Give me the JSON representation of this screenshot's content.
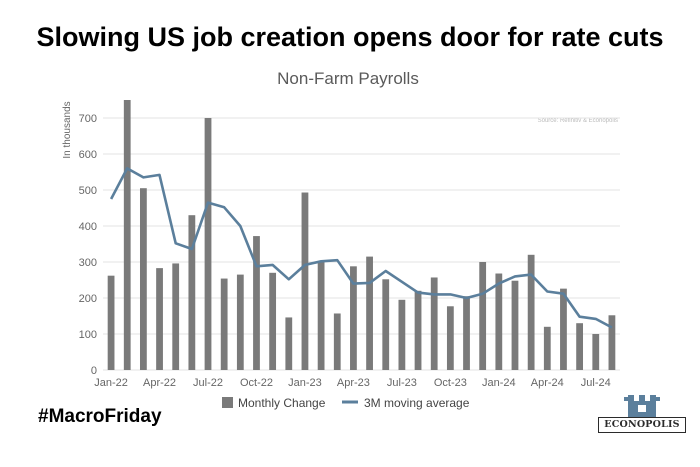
{
  "headline": "Slowing US job creation opens door for rate cuts",
  "hashtag": "#MacroFriday",
  "logo_text": "ECONOPOLIS",
  "chart_data": {
    "type": "bar",
    "title": "Non-Farm Payrolls",
    "source": "Source: Refinitiv & Econopolis",
    "ylabel": "In thousands",
    "ylim": [
      0,
      750
    ],
    "yticks": [
      0,
      100,
      200,
      300,
      400,
      500,
      600,
      700
    ],
    "grid": true,
    "legend_position": "bottom",
    "categories": [
      "Jan-22",
      "Feb-22",
      "Mar-22",
      "Apr-22",
      "May-22",
      "Jun-22",
      "Jul-22",
      "Aug-22",
      "Sep-22",
      "Oct-22",
      "Nov-22",
      "Dec-22",
      "Jan-23",
      "Feb-23",
      "Mar-23",
      "Apr-23",
      "May-23",
      "Jun-23",
      "Jul-23",
      "Aug-23",
      "Sep-23",
      "Oct-23",
      "Nov-23",
      "Dec-23",
      "Jan-24",
      "Feb-24",
      "Mar-24",
      "Apr-24",
      "May-24",
      "Jun-24",
      "Jul-24",
      "Aug-24"
    ],
    "tick_labels": [
      {
        "index": 0,
        "label": "Jan-22"
      },
      {
        "index": 3,
        "label": "Apr-22"
      },
      {
        "index": 6,
        "label": "Jul-22"
      },
      {
        "index": 9,
        "label": "Oct-22"
      },
      {
        "index": 12,
        "label": "Jan-23"
      },
      {
        "index": 15,
        "label": "Apr-23"
      },
      {
        "index": 18,
        "label": "Jul-23"
      },
      {
        "index": 21,
        "label": "Oct-23"
      },
      {
        "index": 24,
        "label": "Jan-24"
      },
      {
        "index": 27,
        "label": "Apr-24"
      },
      {
        "index": 30,
        "label": "Jul-24"
      }
    ],
    "series": [
      {
        "name": "Monthly Change",
        "kind": "bar",
        "color": "#7a7a7a",
        "values": [
          262,
          750,
          505,
          283,
          296,
          430,
          700,
          254,
          265,
          372,
          270,
          146,
          493,
          300,
          157,
          288,
          315,
          252,
          195,
          220,
          257,
          177,
          205,
          300,
          268,
          248,
          320,
          120,
          226,
          130,
          100,
          152
        ]
      },
      {
        "name": "3M moving average",
        "kind": "line",
        "color": "#5b7f9c",
        "values": [
          475,
          560,
          535,
          542,
          352,
          336,
          465,
          452,
          400,
          288,
          292,
          252,
          292,
          302,
          305,
          240,
          242,
          275,
          245,
          215,
          210,
          210,
          200,
          212,
          240,
          260,
          265,
          218,
          212,
          148,
          142,
          118
        ]
      }
    ]
  }
}
